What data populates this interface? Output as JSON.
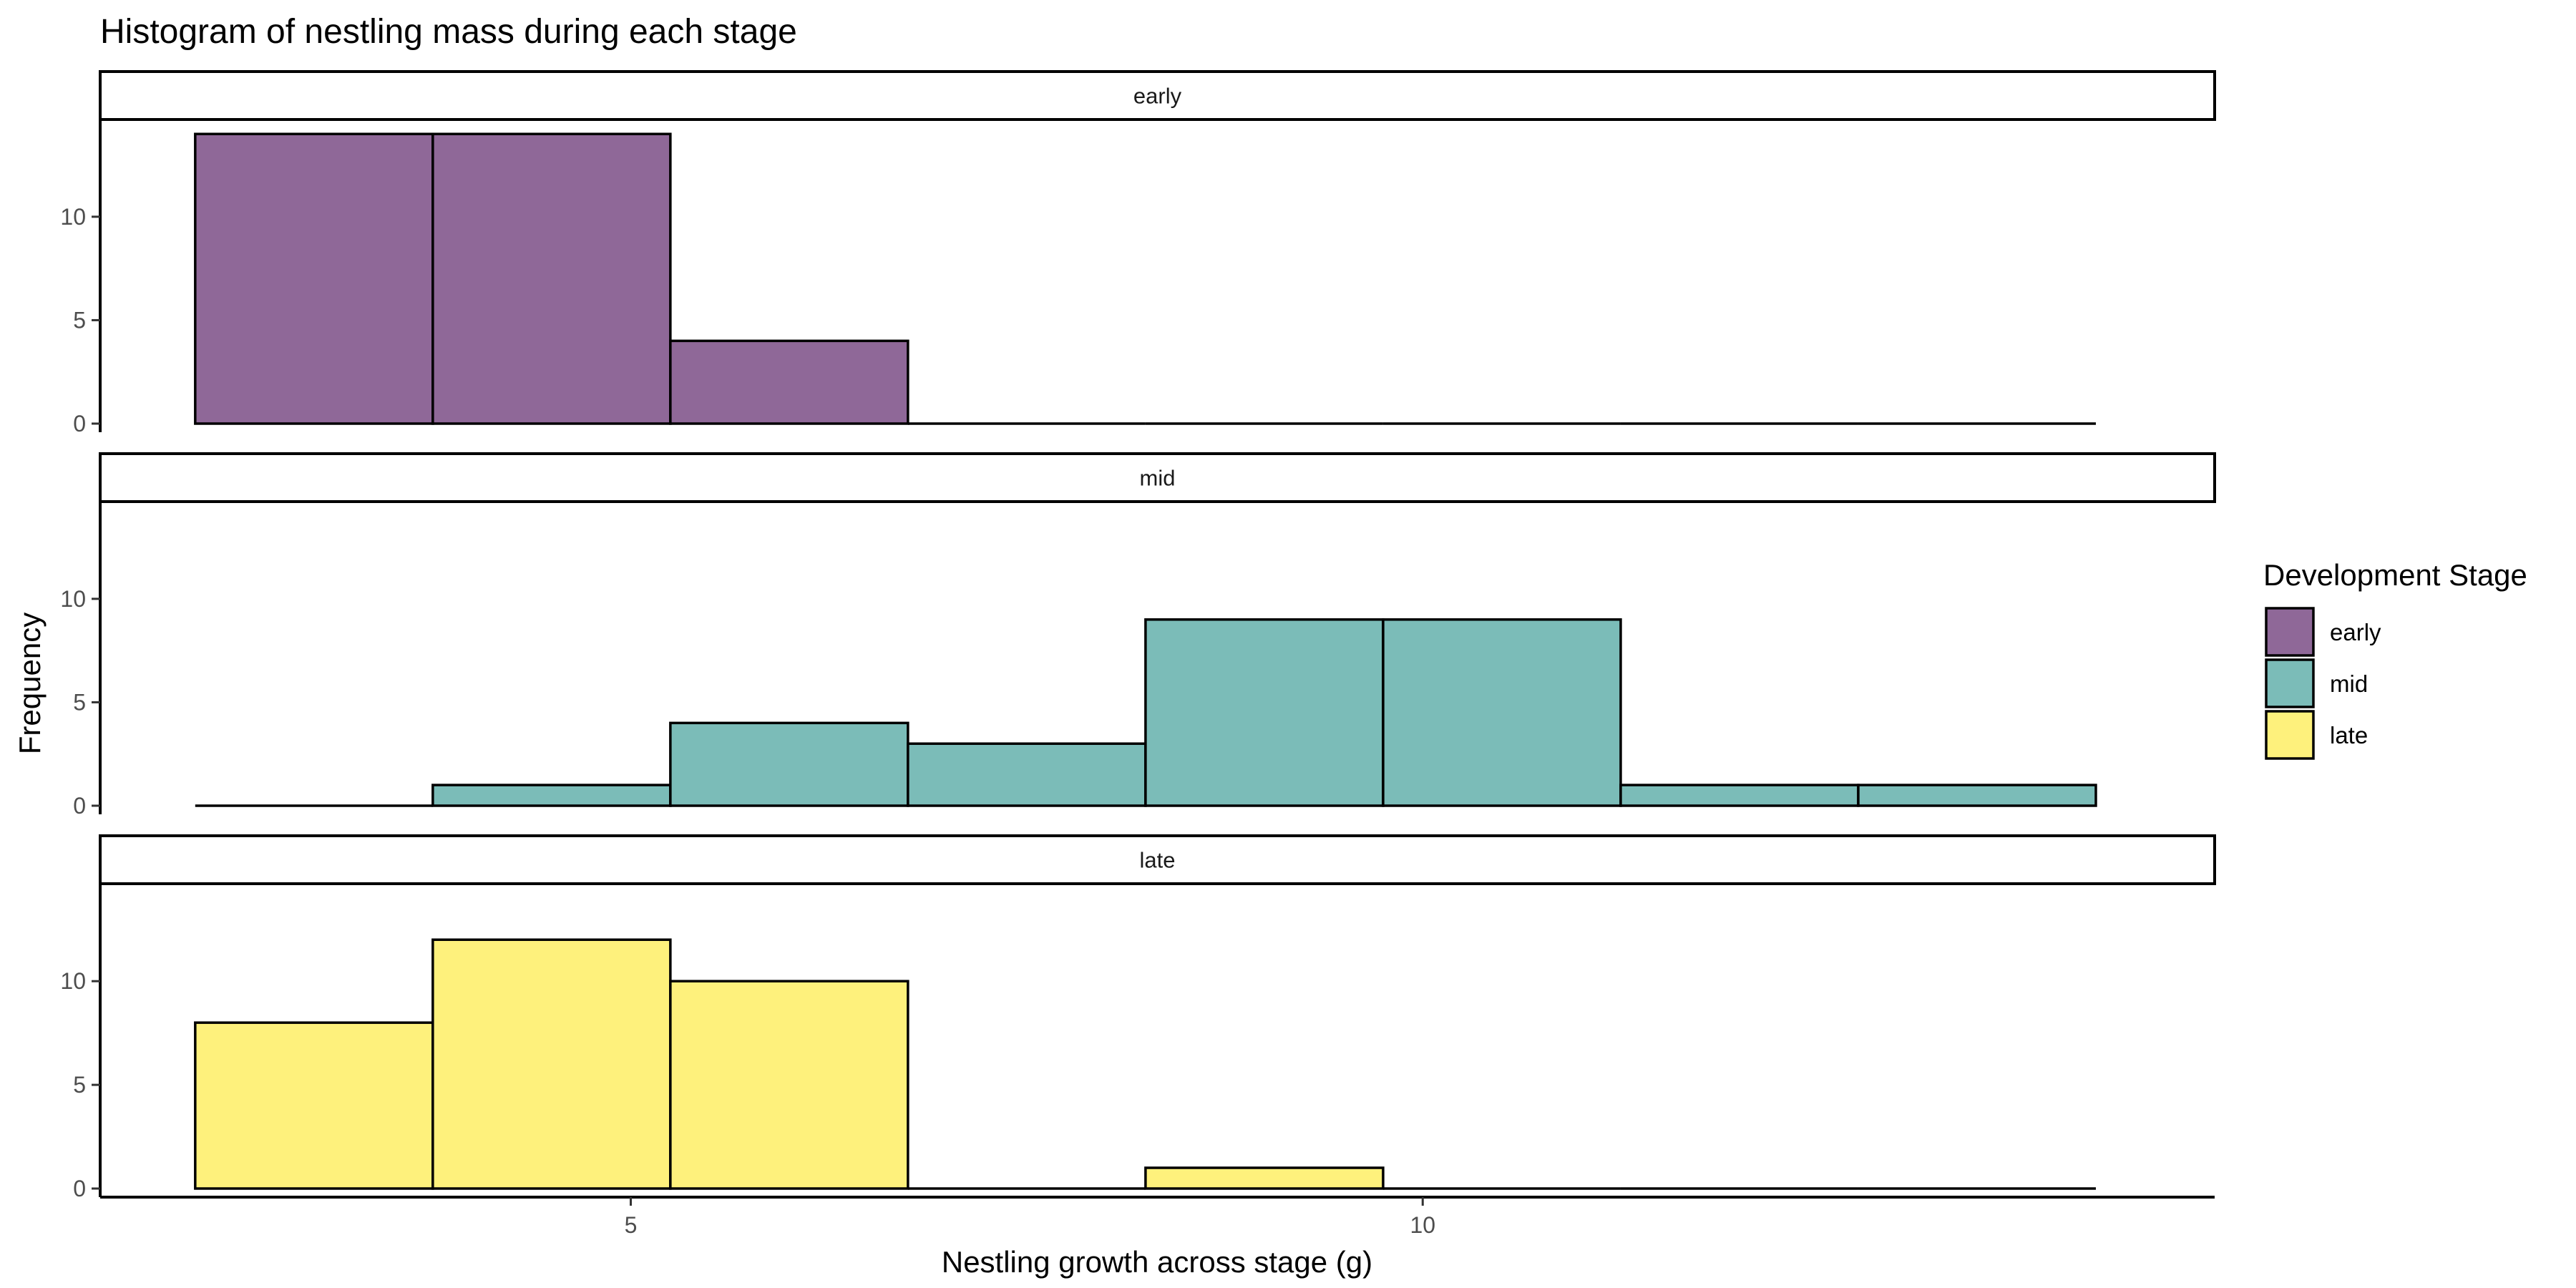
{
  "chart_data": {
    "type": "bar",
    "subtype": "faceted-histogram",
    "title": "Histogram of nestling mass during each stage",
    "xlabel": "Nestling growth across stage (g)",
    "ylabel": "Frequency",
    "x_ticks": [
      5,
      10
    ],
    "y_ticks": [
      0,
      5,
      10
    ],
    "xlim": [
      1.65,
      15.0
    ],
    "ylim": [
      0,
      14.7
    ],
    "bin_edges": [
      2.25,
      3.75,
      5.25,
      6.75,
      8.25,
      9.75,
      11.25,
      12.75,
      14.25
    ],
    "legend": {
      "title": "Development Stage",
      "position": "right",
      "items": [
        {
          "label": "early",
          "color": "#8F6898"
        },
        {
          "label": "mid",
          "color": "#7BBCB8"
        },
        {
          "label": "late",
          "color": "#FEF17C"
        }
      ]
    },
    "series": [
      {
        "name": "early",
        "color": "#8F6898",
        "values": [
          14,
          14,
          4,
          0,
          0,
          0,
          0,
          0
        ]
      },
      {
        "name": "mid",
        "color": "#7BBCB8",
        "values": [
          0,
          1,
          4,
          3,
          9,
          9,
          1,
          1
        ]
      },
      {
        "name": "late",
        "color": "#FEF17C",
        "values": [
          8,
          12,
          10,
          0,
          1,
          0,
          0,
          0
        ]
      }
    ]
  }
}
